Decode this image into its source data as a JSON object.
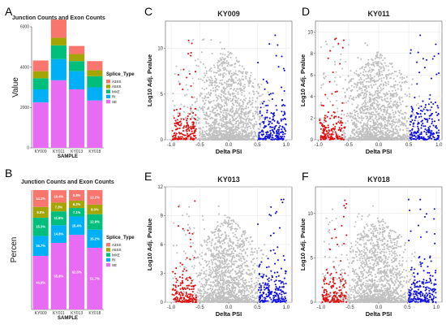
{
  "colors": {
    "A3SS": "#f8766d",
    "A5SS": "#a3a500",
    "MXE": "#00bf7d",
    "RI": "#00b0f6",
    "SE": "#e76bf3",
    "up": "#1010e0",
    "down": "#e01010",
    "ns": "#c0c0c0",
    "grid": "#e6e6e6"
  },
  "panel_labels": [
    "A",
    "B",
    "C",
    "D",
    "E",
    "F"
  ],
  "legend": {
    "title": "Splice_Type",
    "items": [
      "A3SS",
      "A5SS",
      "MXE",
      "RI",
      "SE"
    ]
  },
  "chart_data": [
    {
      "id": "A",
      "type": "bar",
      "stacked": true,
      "title": "Junction Counts and Exon Counts",
      "xlabel": "SAMPLE",
      "ylabel": "Value",
      "categories": [
        "KY009",
        "KY011",
        "KY013",
        "KY018"
      ],
      "ylim": [
        0,
        6000
      ],
      "yticks": [
        0,
        2000,
        4000,
        6000
      ],
      "series": [
        {
          "name": "SE",
          "values": [
            2250,
            3350,
            2900,
            2350
          ]
        },
        {
          "name": "RI",
          "values": [
            650,
            1050,
            900,
            650
          ]
        },
        {
          "name": "MXE",
          "values": [
            550,
            680,
            500,
            550
          ]
        },
        {
          "name": "A5SS",
          "values": [
            350,
            380,
            350,
            300
          ]
        },
        {
          "name": "A3SS",
          "values": [
            530,
            900,
            400,
            450
          ]
        }
      ]
    },
    {
      "id": "B",
      "type": "bar",
      "stacked": true,
      "title": "Junction Counts and Exon Counts",
      "xlabel": "SAMPLE",
      "ylabel": "Percen",
      "categories": [
        "KY009",
        "KY011",
        "KY013",
        "KY018"
      ],
      "ylim": [
        0,
        100
      ],
      "series": [
        {
          "name": "SE",
          "values": [
            44.9,
            55.8,
            62.5,
            51.7
          ],
          "labels": [
            "44.9%",
            "55.8%",
            "62.5%",
            "51.7%"
          ]
        },
        {
          "name": "RI",
          "values": [
            16.7,
            14.8,
            15.4,
            15.2
          ],
          "labels": [
            "16.7%",
            "14.8%",
            "15.4%",
            "15.2%"
          ]
        },
        {
          "name": "MXE",
          "values": [
            15.3,
            11.6,
            7.1,
            12.9
          ],
          "labels": [
            "15.3%",
            "11.6%",
            "7.1%",
            "12.9%"
          ]
        },
        {
          "name": "A5SS",
          "values": [
            9.0,
            7.3,
            6.2,
            8.0
          ],
          "labels": [
            "9.0%",
            "7.3%",
            "6.2%",
            "8.0%"
          ]
        },
        {
          "name": "A3SS",
          "values": [
            14.1,
            10.4,
            8.8,
            12.2
          ],
          "labels": [
            "14.1%",
            "10.4%",
            "8.8%",
            "12.2%"
          ]
        }
      ]
    },
    {
      "id": "C",
      "type": "scatter",
      "title": "KY009",
      "xlabel": "Delta PSI",
      "ylabel": "Log10 Adj. Pvalue",
      "xlim": [
        -1.1,
        1.1
      ],
      "ylim": [
        0,
        13
      ],
      "xticks": [
        "-1.0",
        "-0.5",
        "0.0",
        "0.5",
        "1.0"
      ],
      "yticks": [
        0,
        5,
        10
      ],
      "seed": 11
    },
    {
      "id": "D",
      "type": "scatter",
      "title": "KY011",
      "xlabel": "Delta PSI",
      "ylabel": "Log10 Adj. Pvalue",
      "xlim": [
        -1.05,
        1.05
      ],
      "ylim": [
        0,
        11
      ],
      "xticks": [
        "-1.0",
        "-0.5",
        "0.0",
        "0.5",
        "1.0"
      ],
      "yticks": [
        0,
        2,
        4,
        6,
        8,
        10
      ],
      "seed": 23
    },
    {
      "id": "E",
      "type": "scatter",
      "title": "KY013",
      "xlabel": "Delta PSI",
      "ylabel": "Log10 Adj. Pvalue",
      "xlim": [
        -1.1,
        1.1
      ],
      "ylim": [
        0,
        12
      ],
      "xticks": [
        "-1.0",
        "-0.5",
        "0.0",
        "0.5",
        "1.0"
      ],
      "yticks": [
        0,
        3,
        6,
        9,
        12
      ],
      "seed": 37
    },
    {
      "id": "F",
      "type": "scatter",
      "title": "KY018",
      "xlabel": "Delta PSI",
      "ylabel": "Log10 Adj. Pvalue",
      "xlim": [
        -1.1,
        1.1
      ],
      "ylim": [
        0,
        13
      ],
      "xticks": [
        "-1.0",
        "-0.5",
        "0.0",
        "0.5",
        "1.0"
      ],
      "yticks": [
        0,
        5,
        10
      ],
      "seed": 53
    }
  ]
}
